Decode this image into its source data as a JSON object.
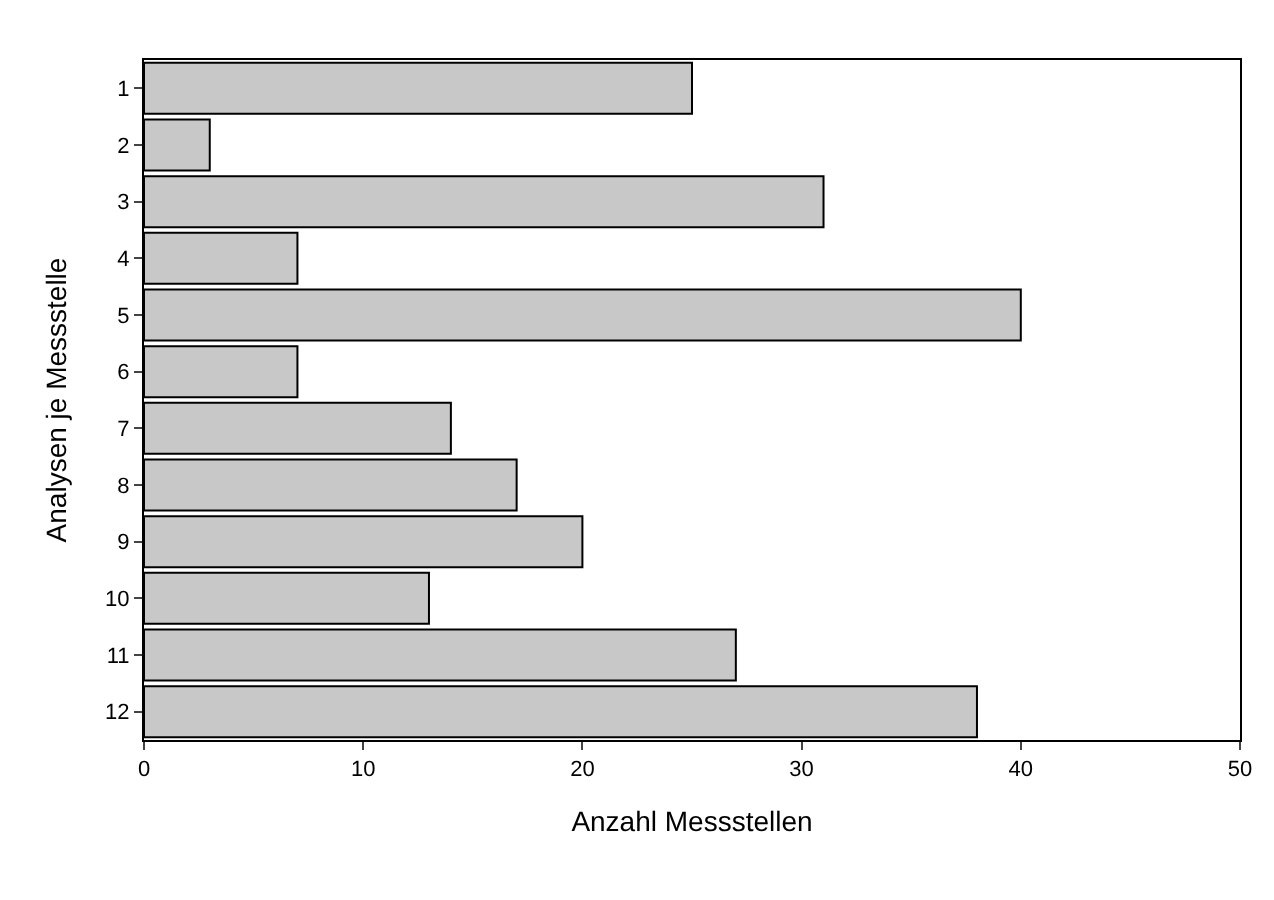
{
  "chart_data": {
    "type": "bar",
    "orientation": "horizontal",
    "xlabel": "Anzahl Messstellen",
    "ylabel": "Analysen je Messstelle",
    "categories": [
      "1",
      "2",
      "3",
      "4",
      "5",
      "6",
      "7",
      "8",
      "9",
      "10",
      "11",
      "12"
    ],
    "values": [
      25,
      3,
      31,
      7,
      40,
      7,
      14,
      17,
      20,
      13,
      27,
      38
    ],
    "color": "#c8c8c8",
    "xlim": [
      0,
      50
    ],
    "xticks": [
      0,
      10,
      20,
      30,
      40,
      50
    ]
  }
}
